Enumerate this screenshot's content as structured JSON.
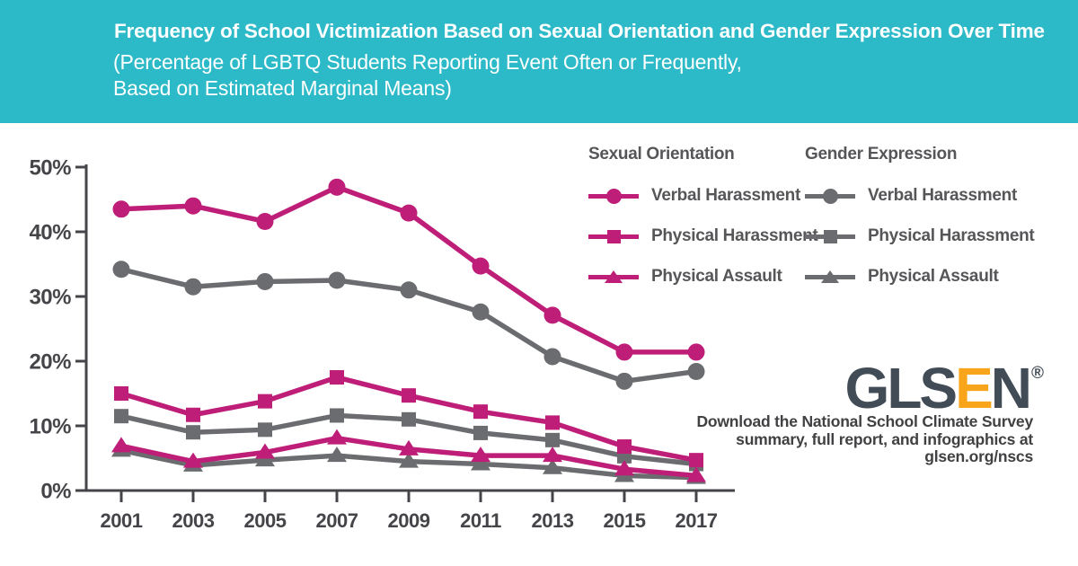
{
  "header": {
    "title": "Frequency of School Victimization Based on Sexual Orientation and Gender Expression Over Time",
    "subtitle_line1": "(Percentage of LGBTQ Students Reporting Event Often or Frequently,",
    "subtitle_line2": "Based on Estimated Marginal Means)"
  },
  "colors": {
    "teal": "#2CB9C8",
    "magenta": "#BE1E78",
    "gray": "#6B6C6F",
    "axis": "#454549",
    "navy": "#424C57",
    "orange": "#F9A51C",
    "textDark": "#414042",
    "legendText": "#565659"
  },
  "chart_data": {
    "type": "line",
    "title": "Frequency of School Victimization Based on Sexual Orientation and Gender Expression Over Time",
    "subtitle": "(Percentage of LGBTQ Students Reporting Event Often or Frequently, Based on Estimated Marginal Means)",
    "x": [
      2001,
      2003,
      2005,
      2007,
      2009,
      2011,
      2013,
      2015,
      2017
    ],
    "ylim": [
      0,
      50
    ],
    "y_ticks": [
      "0%",
      "10%",
      "20%",
      "30%",
      "40%",
      "50%"
    ],
    "grid": false,
    "legend_position": "top-right",
    "groups": [
      {
        "name": "Sexual Orientation",
        "color": "#BE1E78",
        "series": [
          {
            "name": "Verbal Harassment",
            "marker": "circle",
            "values": [
              43.5,
              44.0,
              41.6,
              46.9,
              42.9,
              34.7,
              27.1,
              21.4,
              21.4
            ]
          },
          {
            "name": "Physical Harassment",
            "marker": "square",
            "values": [
              15.0,
              11.7,
              13.8,
              17.5,
              14.7,
              12.2,
              10.5,
              6.8,
              4.7
            ]
          },
          {
            "name": "Physical Assault",
            "marker": "triangle",
            "values": [
              6.9,
              4.5,
              5.9,
              8.1,
              6.4,
              5.4,
              5.4,
              3.3,
              2.3
            ]
          }
        ]
      },
      {
        "name": "Gender Expression",
        "color": "#6B6C6F",
        "series": [
          {
            "name": "Verbal Harassment",
            "marker": "circle",
            "values": [
              34.2,
              31.5,
              32.3,
              32.5,
              31.0,
              27.6,
              20.7,
              16.9,
              18.4
            ]
          },
          {
            "name": "Physical Harassment",
            "marker": "square",
            "values": [
              11.5,
              9.0,
              9.4,
              11.6,
              11.0,
              8.9,
              7.8,
              5.3,
              4.1
            ]
          },
          {
            "name": "Physical Assault",
            "marker": "triangle",
            "values": [
              6.2,
              3.9,
              4.7,
              5.4,
              4.5,
              4.1,
              3.5,
              2.3,
              2.0
            ]
          }
        ]
      }
    ]
  },
  "footer": {
    "logo_main1": "GLS",
    "logo_accent": "E",
    "logo_main2": "N",
    "logo_reg": "®",
    "download_line1": "Download the National School Climate Survey",
    "download_line2": "summary, full report, and infographics at",
    "download_line3": "glsen.org/nscs"
  }
}
